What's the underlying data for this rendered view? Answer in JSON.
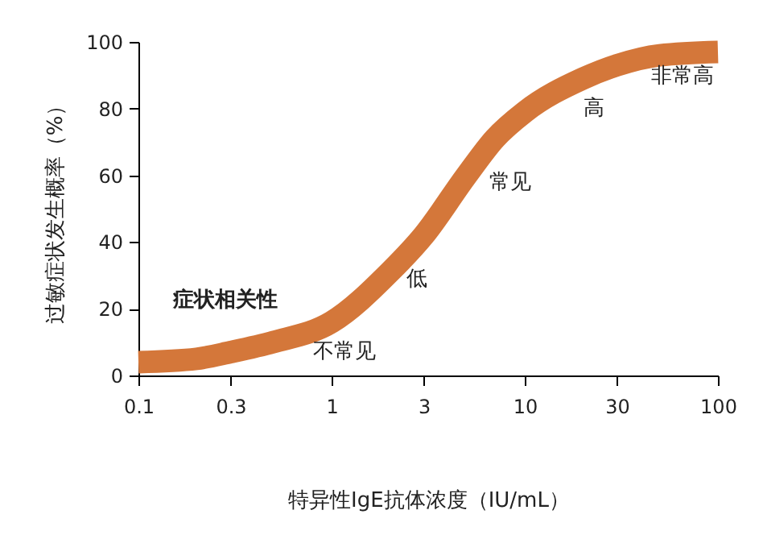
{
  "chart_data": {
    "type": "line",
    "xlabel": "特异性IgE抗体浓度（IU/mL）",
    "ylabel": "过敏症状发生概率（%）",
    "x": [
      0.1,
      0.2,
      0.3,
      0.5,
      1,
      2,
      3,
      5,
      7,
      10,
      20,
      30,
      50,
      100
    ],
    "series": [
      {
        "color": "#d4773a",
        "values": [
          4,
          5,
          7,
          10,
          16,
          31,
          42,
          60,
          71,
          79,
          89,
          93,
          96,
          97
        ]
      }
    ],
    "log": "x",
    "xlim": [
      0.1,
      100
    ],
    "xticks": [
      0.1,
      0.3,
      1,
      3,
      10,
      30,
      100
    ],
    "ylim": [
      0,
      100
    ],
    "yticks": [
      0,
      20,
      40,
      60,
      80,
      100
    ],
    "grid": false,
    "marker": "none",
    "line_style": "solid",
    "annotations": [
      "症状相关性",
      "不常见",
      "低",
      "常见",
      "高",
      "非常高"
    ]
  }
}
